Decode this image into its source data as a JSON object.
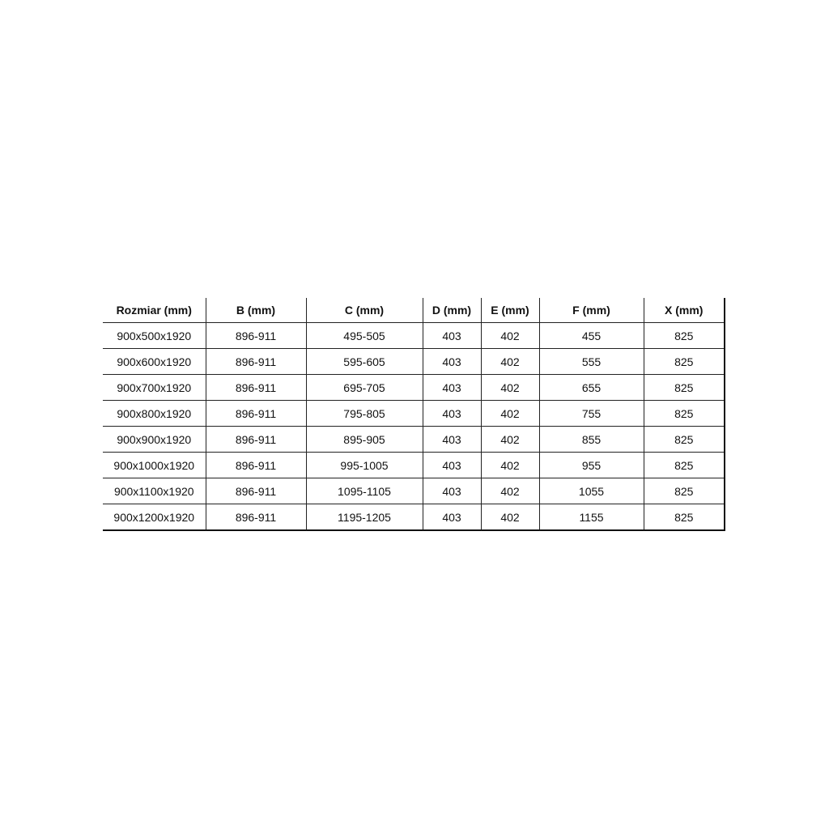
{
  "table": {
    "headers": [
      "Rozmiar (mm)",
      "B (mm)",
      "C (mm)",
      "D (mm)",
      "E (mm)",
      "F (mm)",
      "X (mm)"
    ],
    "rows": [
      [
        "900x500x1920",
        "896-911",
        "495-505",
        "403",
        "402",
        "455",
        "825"
      ],
      [
        "900x600x1920",
        "896-911",
        "595-605",
        "403",
        "402",
        "555",
        "825"
      ],
      [
        "900x700x1920",
        "896-911",
        "695-705",
        "403",
        "402",
        "655",
        "825"
      ],
      [
        "900x800x1920",
        "896-911",
        "795-805",
        "403",
        "402",
        "755",
        "825"
      ],
      [
        "900x900x1920",
        "896-911",
        "895-905",
        "403",
        "402",
        "855",
        "825"
      ],
      [
        "900x1000x1920",
        "896-911",
        "995-1005",
        "403",
        "402",
        "955",
        "825"
      ],
      [
        "900x1100x1920",
        "896-911",
        "1095-1105",
        "403",
        "402",
        "1055",
        "825"
      ],
      [
        "900x1200x1920",
        "896-911",
        "1195-1205",
        "403",
        "402",
        "1155",
        "825"
      ]
    ]
  }
}
